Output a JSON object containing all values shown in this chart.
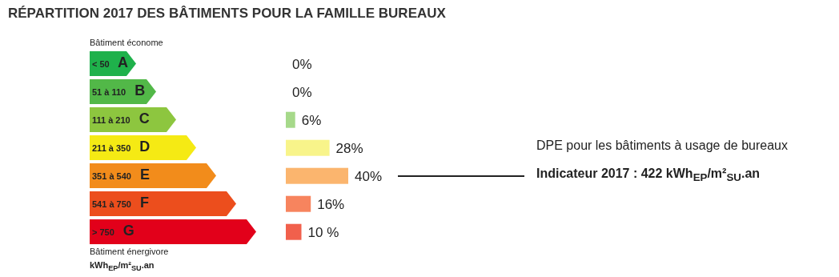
{
  "chart_data": {
    "type": "bar",
    "orientation": "horizontal",
    "title": "RÉPARTITION 2017 DES BÂTIMENTS POUR LA FAMILLE BUREAUX",
    "categories": [
      "< 50 A",
      "51 à 110 B",
      "111 à 210 C",
      "211 à 350 D",
      "351 à 540 E",
      "541 à 750 F",
      "> 750 G"
    ],
    "values": [
      0,
      0,
      6,
      28,
      40,
      16,
      10
    ],
    "colors": [
      "#a6d98a",
      "#a6d98a",
      "#a6d98a",
      "#f8f48a",
      "#fbb56e",
      "#f7845e",
      "#f1604c"
    ],
    "value_labels": [
      "0%",
      "0%",
      "6%",
      "28%",
      "40%",
      "16%",
      "10 %"
    ],
    "annotations": [
      "Bâtiment économe",
      "Bâtiment énergivore",
      "kWh$_{EP}$/m²$_{SU}$.an",
      "DPE pour les bâtiments à usage de bureaux",
      "Indicateur 2017 :  422 kWh$_{EP}$/m²$_{SU}$.an"
    ]
  }
}
